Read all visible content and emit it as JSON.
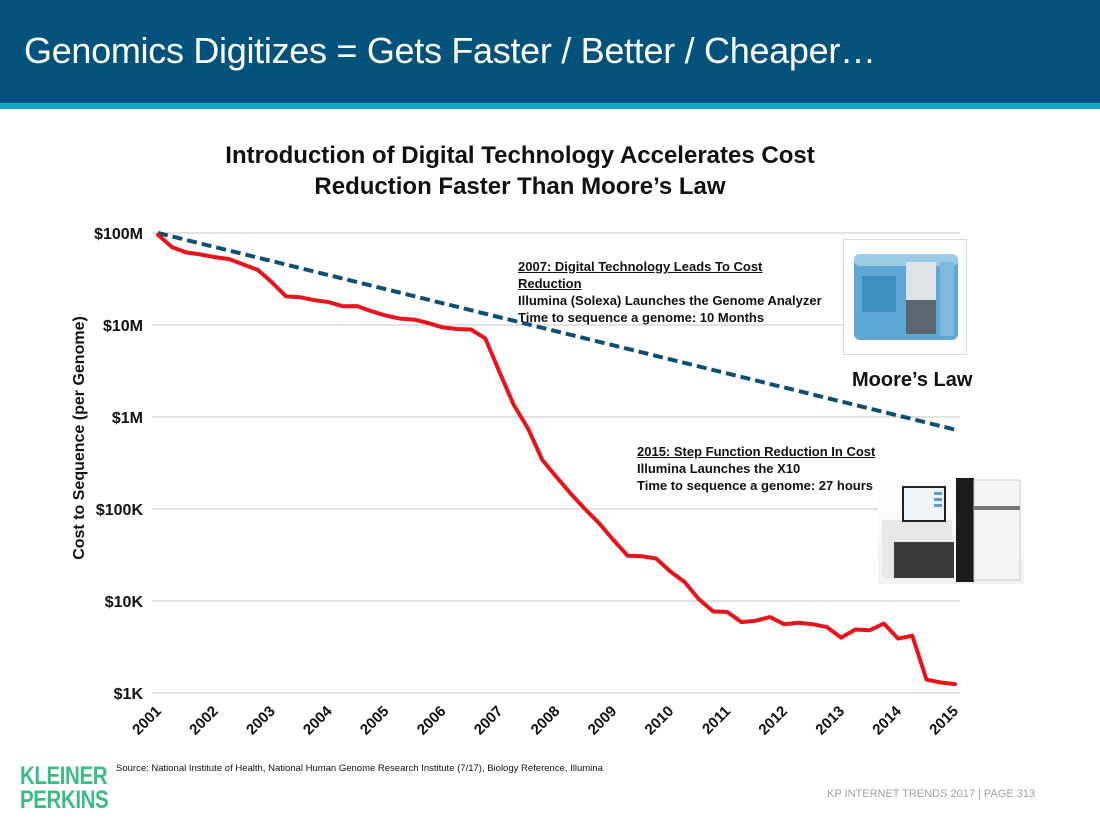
{
  "header": {
    "title": "Genomics Digitizes = Gets Faster / Better / Cheaper…"
  },
  "colors": {
    "header_bg": "#02527c",
    "header_stripe": "#12a5c6",
    "cost_line": "#e8141b",
    "moores_law_line": "#0b4f73",
    "logo": "#3dbb86",
    "gridline": "#d9d9d9"
  },
  "chart_data": {
    "type": "line",
    "title": "Introduction of Digital Technology Accelerates Cost Reduction Faster Than Moore's Law",
    "title_lines": [
      "Introduction of Digital Technology Accelerates Cost",
      "Reduction Faster Than Moore’s Law"
    ],
    "xlabel": "",
    "ylabel": "Cost to Sequence (per Genome)",
    "yscale": "log",
    "ylim": [
      1000,
      100000000
    ],
    "xlim": [
      2001,
      2015
    ],
    "grid": true,
    "y_ticks": [
      {
        "value": 100000000,
        "label": "$100M"
      },
      {
        "value": 10000000,
        "label": "$10M"
      },
      {
        "value": 1000000,
        "label": "$1M"
      },
      {
        "value": 100000,
        "label": "$100K"
      },
      {
        "value": 10000,
        "label": "$10K"
      },
      {
        "value": 1000,
        "label": "$1K"
      }
    ],
    "x_ticks": [
      "2001",
      "2002",
      "2003",
      "2004",
      "2005",
      "2006",
      "2007",
      "2008",
      "2009",
      "2010",
      "2011",
      "2012",
      "2013",
      "2014",
      "2015"
    ],
    "series": [
      {
        "name": "Cost per Genome",
        "style": "solid",
        "color": "#e8141b",
        "x": [
          2001.0,
          2001.25,
          2001.5,
          2001.75,
          2002.0,
          2002.25,
          2002.5,
          2002.75,
          2003.0,
          2003.25,
          2003.5,
          2003.75,
          2004.0,
          2004.25,
          2004.5,
          2004.75,
          2005.0,
          2005.25,
          2005.5,
          2005.75,
          2006.0,
          2006.25,
          2006.5,
          2006.75,
          2007.0,
          2007.25,
          2007.5,
          2007.75,
          2008.0,
          2008.25,
          2008.5,
          2008.75,
          2009.0,
          2009.25,
          2009.5,
          2009.75,
          2010.0,
          2010.25,
          2010.5,
          2010.75,
          2011.0,
          2011.25,
          2011.5,
          2011.75,
          2012.0,
          2012.25,
          2012.5,
          2012.75,
          2013.0,
          2013.25,
          2013.5,
          2013.75,
          2014.0,
          2014.25,
          2014.5,
          2014.75,
          2015.0
        ],
        "values": [
          95263000,
          70175000,
          61448000,
          58390000,
          54757000,
          51999000,
          45484000,
          39855000,
          29092000,
          20442000,
          19994000,
          18597000,
          17698000,
          15957000,
          16052000,
          14123000,
          12679000,
          11749000,
          11449000,
          10474000,
          9408000,
          9047000,
          8925000,
          7147000,
          3063000,
          1352000,
          752000,
          342000,
          223000,
          147000,
          100000,
          70000,
          46000,
          31000,
          30700,
          29000,
          20900,
          16100,
          10500,
          7700,
          7600,
          5900,
          6100,
          6700,
          5600,
          5800,
          5600,
          5200,
          4000,
          4900,
          4800,
          5700,
          3900,
          4200,
          1400,
          1300,
          1250
        ]
      },
      {
        "name": "Moore's Law",
        "style": "dashed",
        "color": "#0b4f73",
        "x": [
          2001,
          2015
        ],
        "values": [
          100000000,
          730000
        ]
      }
    ],
    "annotations": [
      {
        "text": "Moore’s Law",
        "target": "Moore's Law"
      }
    ]
  },
  "notes": {
    "note_2007": {
      "head_line1": "2007: Digital Technology Leads To Cost",
      "head_line2": "Reduction",
      "line3": "Illumina (Solexa) Launches the Genome Analyzer",
      "line4": "Time to sequence a genome: 10 Months"
    },
    "note_2015": {
      "head": "2015: Step Function Reduction In Cost",
      "line2": "Illumina Launches the X10",
      "line3": "Time to sequence a genome: 27 hours"
    },
    "moore_label": "Moore’s Law"
  },
  "footer": {
    "logo_line1": "KLEINER",
    "logo_line2": "PERKINS",
    "source": "Source: National Institute of Health, National Human Genome Research Institute (7/17), Biology Reference, Illumina",
    "page": "KP INTERNET TRENDS 2017   |   PAGE 313"
  }
}
